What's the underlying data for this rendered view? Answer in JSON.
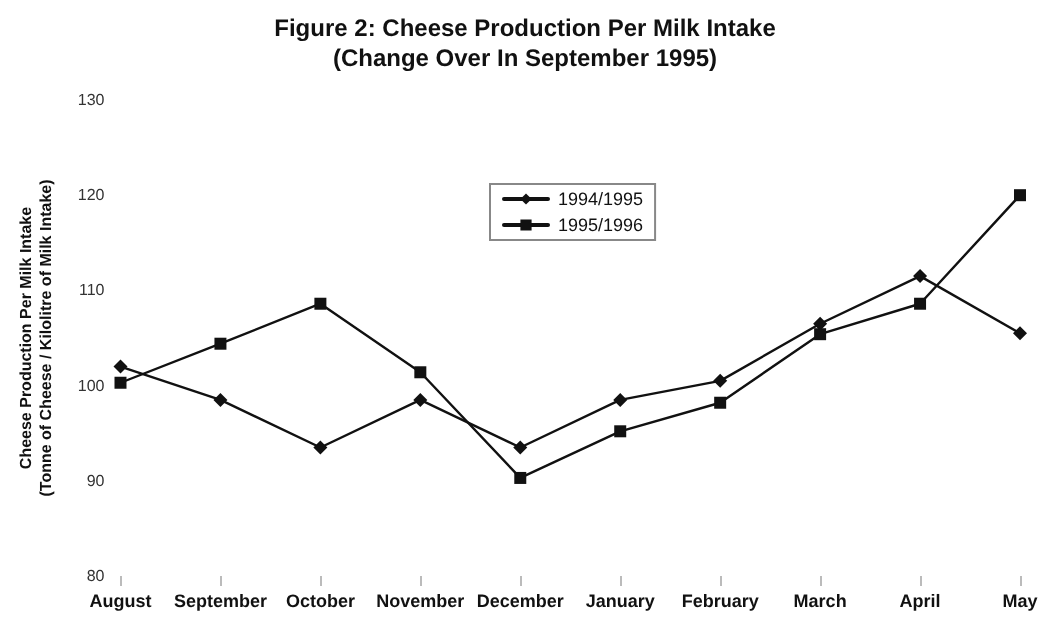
{
  "chart_data": {
    "type": "line",
    "title": "Figure 2: Cheese Production Per Milk Intake",
    "subtitle": "(Change Over In September 1995)",
    "ylabel": "Cheese Production Per Milk Intake\n(Tonne of Cheese / Kilolitre of Milk Intake)",
    "categories": [
      "August",
      "September",
      "October",
      "November",
      "December",
      "January",
      "February",
      "March",
      "April",
      "May"
    ],
    "series": [
      {
        "name": "1994/1995",
        "color": "#111111",
        "marker": "diamond",
        "values": [
          102,
          98.5,
          93.5,
          98.5,
          93.5,
          98.5,
          100.5,
          106.5,
          111.5,
          105.5
        ]
      },
      {
        "name": "1995/1996",
        "color": "#111111",
        "marker": "square",
        "values": [
          100.3,
          104.4,
          108.6,
          101.4,
          90.3,
          95.2,
          98.2,
          105.4,
          108.6,
          120
        ]
      }
    ],
    "ylim": [
      80,
      130
    ],
    "yticks": [
      80,
      90,
      100,
      110,
      120,
      130
    ],
    "grid": false,
    "legend": "top",
    "line_style": "solid"
  }
}
